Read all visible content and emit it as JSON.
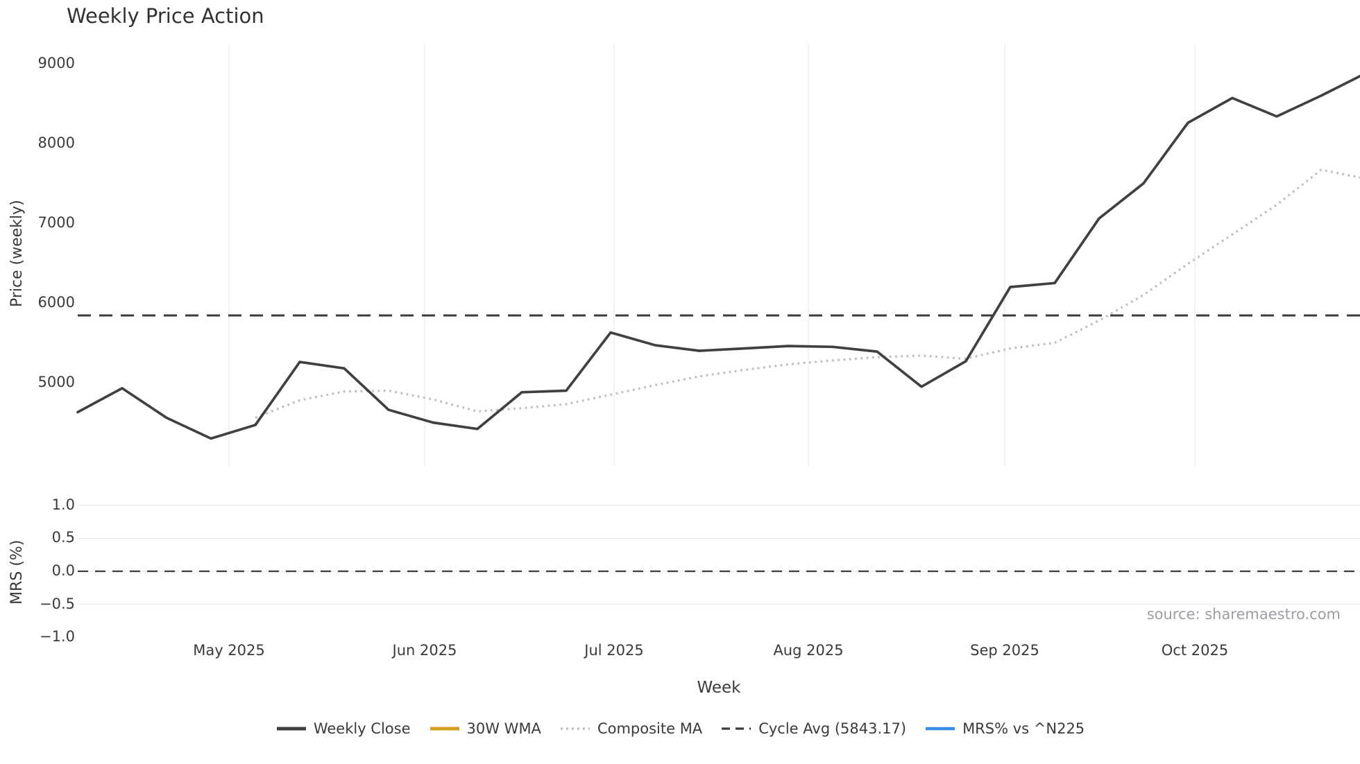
{
  "title": "Weekly Price Action",
  "source_text": "source: sharemaestro.com",
  "axes": {
    "price": {
      "label": "Price (weekly)",
      "ticks": [
        "9000",
        "8000",
        "7000",
        "6000",
        "5000"
      ]
    },
    "mrs": {
      "label": "MRS (%)",
      "ticks": [
        "1.0",
        "0.5",
        "0.0",
        "−0.5",
        "−1.0"
      ]
    },
    "x": {
      "label": "Week",
      "month_ticks": [
        "May 2025",
        "Jun 2025",
        "Jul 2025",
        "Aug 2025",
        "Sep 2025",
        "Oct 2025"
      ]
    }
  },
  "legend": [
    {
      "label": "Weekly Close",
      "style": "solid",
      "color": "#404040"
    },
    {
      "label": "30W WMA",
      "style": "solid",
      "color": "#D5A021"
    },
    {
      "label": "Composite MA",
      "style": "dotted",
      "color": "#BFBFBF"
    },
    {
      "label": "Cycle Avg (5843.17)",
      "style": "dashed",
      "color": "#3A3A3A"
    },
    {
      "label": "MRS% vs ^N225",
      "style": "solid",
      "color": "#3B8BE9"
    }
  ],
  "colors": {
    "weekly_close": "#404040",
    "wma_30w": "#D5A021",
    "composite_ma": "#BFBFBF",
    "cycle_avg": "#3A3A3A",
    "mrs_line": "#3B8BE9",
    "gridline": "#ECECEC",
    "source_gray": "#9B9EA3"
  },
  "chart_data": [
    {
      "type": "line",
      "title": "Weekly Price Action",
      "xlabel": "Week",
      "ylabel": "Price (weekly)",
      "x_tick_labels": [
        "May 2025",
        "Jun 2025",
        "Jul 2025",
        "Aug 2025",
        "Sep 2025",
        "Oct 2025"
      ],
      "x_unit": "weekly points, ~mid-Apr 2025 to early-Nov 2025",
      "yticks": [
        5000,
        6000,
        7000,
        8000,
        9000
      ],
      "ylim": [
        4040,
        9280
      ],
      "grid": "vertical-month-gridlines",
      "legend_position": "below-figure",
      "cycle_avg_value": 5843.17,
      "series": [
        {
          "name": "Weekly Close",
          "style": "solid",
          "start_week": 1,
          "values": [
            4630,
            4930,
            4560,
            4300,
            4470,
            5260,
            5180,
            4660,
            4500,
            4420,
            4880,
            4900,
            5630,
            5470,
            5400,
            5430,
            5460,
            5450,
            5390,
            4950,
            5270,
            6200,
            6250,
            7060,
            7500,
            8260,
            8570,
            8340,
            8600,
            8880
          ]
        },
        {
          "name": "30W WMA",
          "style": "solid",
          "values": [],
          "note": "legend entry only; no line visible in plotted range"
        },
        {
          "name": "Composite MA",
          "style": "dotted",
          "start_week": 5,
          "values": [
            4560,
            4780,
            4890,
            4900,
            4790,
            4640,
            4680,
            4730,
            4850,
            4970,
            5080,
            5160,
            5230,
            5280,
            5320,
            5340,
            5300,
            5430,
            5500,
            5780,
            6100,
            6490,
            6860,
            7230,
            7670,
            7560
          ]
        },
        {
          "name": "Cycle Avg",
          "style": "dashed",
          "constant": 5843.17
        }
      ]
    },
    {
      "type": "line",
      "ylabel": "MRS (%)",
      "yticks": [
        1.0,
        0.5,
        0.0,
        -0.5,
        -1.0
      ],
      "ylim": [
        -1.15,
        1.15
      ],
      "grid": "horizontal-gridlines",
      "zero_dashed_line": 0.0,
      "series": [
        {
          "name": "MRS% vs ^N225",
          "style": "solid",
          "values": [],
          "note": "legend entry only; no line visible in panel"
        }
      ]
    }
  ]
}
